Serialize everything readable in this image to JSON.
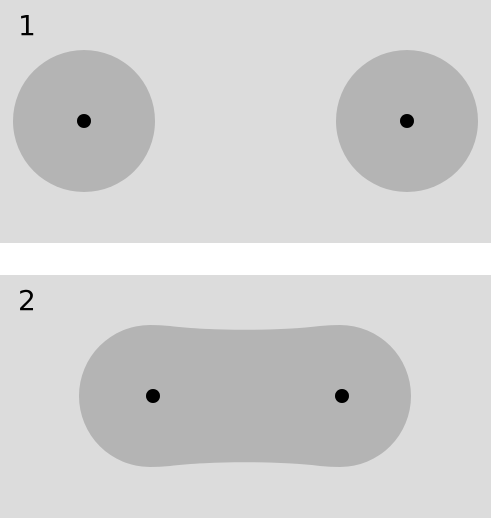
{
  "panels": [
    {
      "label": "1",
      "state": "separate",
      "objects": [
        "disk",
        "disk"
      ],
      "points": 2
    },
    {
      "label": "2",
      "state": "merged",
      "objects": [
        "merged-blob"
      ],
      "points": 2
    }
  ],
  "colors": {
    "background": "#dcdcdc",
    "shape_fill": "#b4b4b4",
    "point": "#000000",
    "page": "#ffffff"
  }
}
